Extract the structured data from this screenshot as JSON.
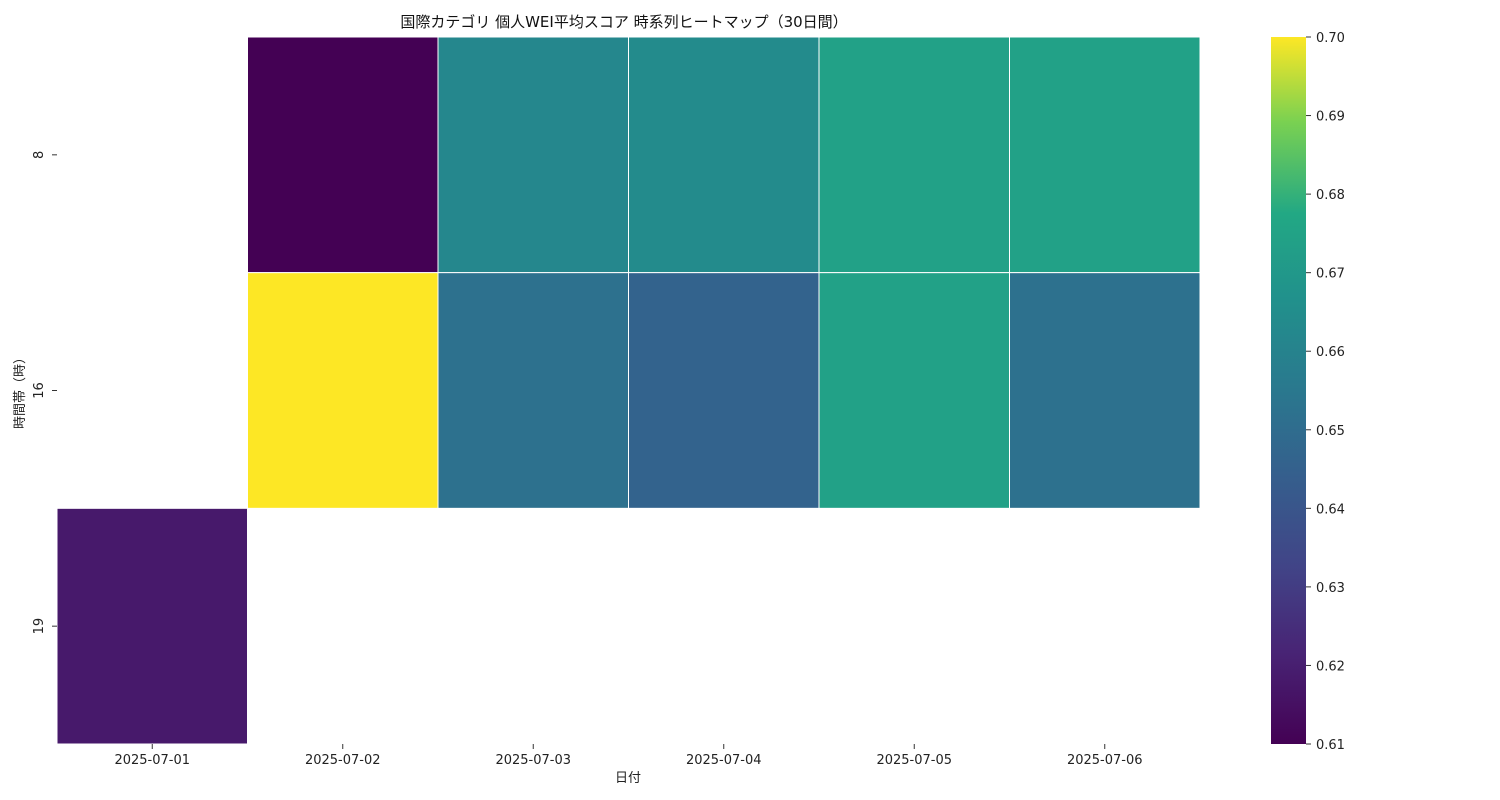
{
  "chart_data": {
    "type": "heatmap",
    "title": "国際カテゴリ 個人WEI平均スコア 時系列ヒートマップ（30日間）",
    "xlabel": "日付",
    "ylabel": "時間帯（時）",
    "x_categories": [
      "2025-07-01",
      "2025-07-02",
      "2025-07-03",
      "2025-07-04",
      "2025-07-05",
      "2025-07-06"
    ],
    "y_categories": [
      "8",
      "16",
      "19"
    ],
    "values": [
      [
        null,
        0.61,
        0.662,
        0.664,
        0.674,
        0.674
      ],
      [
        null,
        0.7,
        0.652,
        0.646,
        0.674,
        0.652
      ],
      [
        0.618,
        null,
        null,
        null,
        null,
        null
      ]
    ],
    "colormap": "viridis",
    "colorbar": {
      "min": 0.61,
      "max": 0.7,
      "ticks": [
        "0.61",
        "0.62",
        "0.63",
        "0.64",
        "0.65",
        "0.66",
        "0.67",
        "0.68",
        "0.69",
        "0.70"
      ]
    },
    "cell_border_color": "#ffffff"
  }
}
